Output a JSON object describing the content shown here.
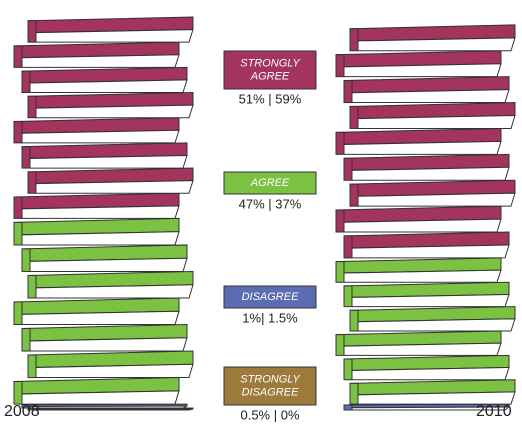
{
  "chart_data": {
    "type": "pictograph",
    "categories": [
      "STRONGLY AGREE",
      "AGREE",
      "DISAGREE",
      "STRONGLY DISAGREE"
    ],
    "colors": [
      "#a3335f",
      "#7cc242",
      "#5b6cb0",
      "#9e7a3c"
    ],
    "series": [
      {
        "name": "2008",
        "values": [
          51,
          47,
          1,
          0.5
        ]
      },
      {
        "name": "2010",
        "values": [
          59,
          37,
          1.5,
          0
        ]
      }
    ],
    "pair_labels": [
      "51% | 59%",
      "47% | 37%",
      "1%| 1.5%",
      "0.5% | 0%"
    ]
  }
}
